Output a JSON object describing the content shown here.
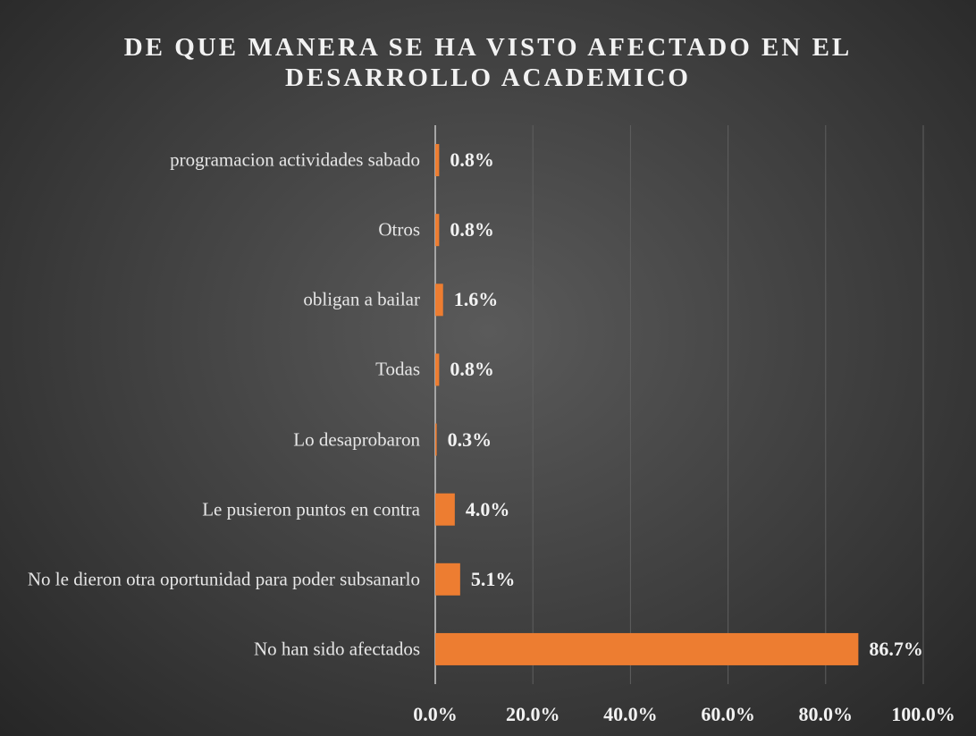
{
  "chart_data": {
    "type": "bar",
    "orientation": "horizontal",
    "title": "DE QUE MANERA SE HA VISTO AFECTADO EN EL DESARROLLO ACADEMICO",
    "categories": [
      "programacion actividades sabado",
      "Otros",
      "obligan a bailar",
      "Todas",
      "Lo desaprobaron",
      "Le pusieron puntos en contra",
      "No le dieron otra oportunidad para poder subsanarlo",
      "No han sido afectados"
    ],
    "values": [
      0.8,
      0.8,
      1.6,
      0.8,
      0.3,
      4.0,
      5.1,
      86.7
    ],
    "value_labels": [
      "0.8%",
      "0.8%",
      "1.6%",
      "0.8%",
      "0.3%",
      "4.0%",
      "5.1%",
      "86.7%"
    ],
    "color": "#ed7d31",
    "xlim": [
      0,
      100
    ],
    "xticks": [
      {
        "value": 0,
        "label": "0.0%"
      },
      {
        "value": 20,
        "label": "20.0%"
      },
      {
        "value": 40,
        "label": "40.0%"
      },
      {
        "value": 60,
        "label": "60.0%"
      },
      {
        "value": 80,
        "label": "80.0%"
      },
      {
        "value": 100,
        "label": "100.0%"
      }
    ],
    "grid": true
  }
}
